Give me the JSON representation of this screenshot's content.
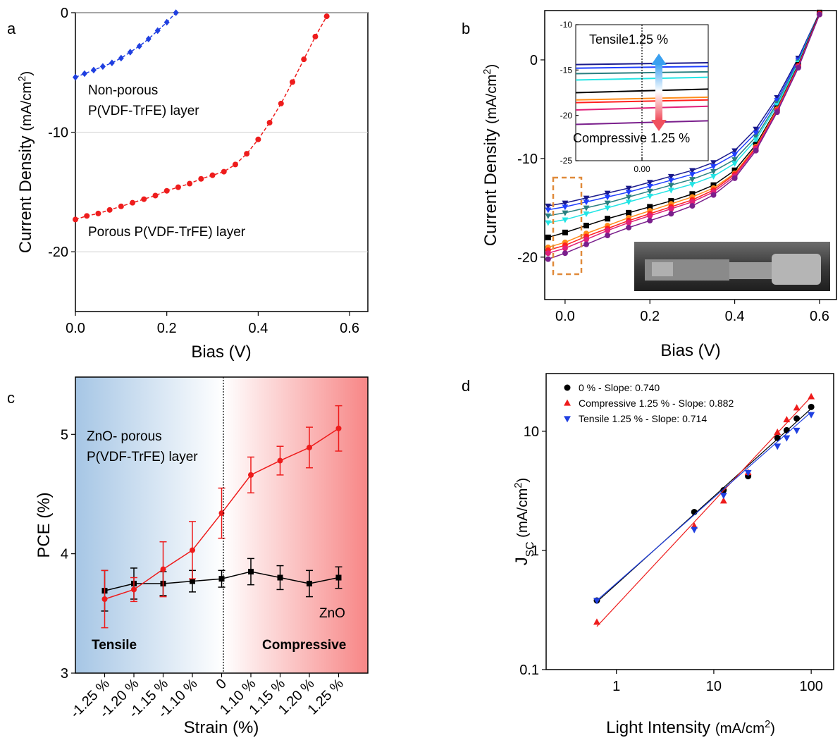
{
  "chart_data": [
    {
      "type": "line",
      "panel": "a",
      "x_label": [
        "Bias (V)"
      ],
      "y_label": [
        "Current Density ",
        "(mA/cm",
        "2",
        ")"
      ],
      "xlim": [
        0,
        0.64
      ],
      "ylim": [
        -25,
        0
      ],
      "xticks": [
        {
          "value": 0,
          "label": "0.0"
        },
        0.2,
        0.4,
        0.6
      ],
      "yticks": [
        -20,
        -10,
        0
      ],
      "grid": true,
      "series": [
        {
          "color": "#1f3fe0",
          "marker": "diamond",
          "dashed": true,
          "x": [
            0,
            0.02,
            0.04,
            0.06,
            0.08,
            0.1,
            0.12,
            0.14,
            0.16,
            0.18,
            0.2,
            0.22
          ],
          "values": [
            -5.4,
            -5.1,
            -4.8,
            -4.5,
            -4.2,
            -3.8,
            -3.3,
            -2.8,
            -2.2,
            -1.5,
            -0.8,
            0
          ]
        },
        {
          "color": "#ee1c1c",
          "marker": "circle",
          "dashed": true,
          "x": [
            0,
            0.025,
            0.05,
            0.075,
            0.1,
            0.125,
            0.15,
            0.175,
            0.2,
            0.225,
            0.25,
            0.275,
            0.3,
            0.325,
            0.35,
            0.375,
            0.4,
            0.425,
            0.45,
            0.475,
            0.5,
            0.525,
            0.55
          ],
          "values": [
            -17.3,
            -17.0,
            -16.8,
            -16.5,
            -16.2,
            -15.9,
            -15.6,
            -15.3,
            -14.9,
            -14.6,
            -14.3,
            -13.9,
            -13.6,
            -13.3,
            -12.7,
            -11.8,
            -10.6,
            -9.2,
            -7.6,
            -5.8,
            -3.9,
            -2.0,
            -0.3
          ]
        }
      ],
      "annotations": [
        {
          "text": "Non-porous"
        },
        {
          "text": "P(VDF-TrFE) layer"
        },
        {
          "text": "Porous P(VDF-TrFE) layer"
        }
      ]
    },
    {
      "type": "line",
      "panel": "b",
      "x_label": [
        "Bias (V)"
      ],
      "y_label": [
        "Current Density ",
        "(mA/cm",
        "2",
        ")"
      ],
      "xlim": [
        -0.048,
        0.64
      ],
      "ylim": [
        -24.3,
        5
      ],
      "xticks": [
        {
          "value": 0,
          "label": "0.0"
        },
        0.2,
        0.4,
        0.6
      ],
      "yticks": [
        -20,
        -10,
        0
      ],
      "grid": false,
      "x": [
        -0.04,
        0,
        0.05,
        0.1,
        0.15,
        0.2,
        0.25,
        0.3,
        0.35,
        0.4,
        0.45,
        0.5,
        0.55,
        0.6
      ],
      "series": [
        {
          "color": "#1a1a8c",
          "marker": "triangle-down",
          "values": [
            -14.8,
            -14.5,
            -14.0,
            -13.5,
            -13.0,
            -12.4,
            -11.8,
            -11.2,
            -10.4,
            -9.2,
            -7.0,
            -3.8,
            0.2,
            4.8
          ]
        },
        {
          "color": "#2040ff",
          "marker": "triangle-down",
          "values": [
            -15.2,
            -14.9,
            -14.4,
            -13.9,
            -13.4,
            -12.8,
            -12.2,
            -11.6,
            -10.8,
            -9.6,
            -7.4,
            -4.1,
            0,
            4.8
          ]
        },
        {
          "color": "#2a7f80",
          "marker": "triangle-down",
          "values": [
            -15.8,
            -15.5,
            -15.0,
            -14.5,
            -13.9,
            -13.3,
            -12.7,
            -12.1,
            -11.3,
            -10.1,
            -7.8,
            -4.4,
            -0.2,
            4.8
          ]
        },
        {
          "color": "#22e5e5",
          "marker": "triangle-down",
          "values": [
            -16.5,
            -16.2,
            -15.6,
            -15.0,
            -14.4,
            -13.8,
            -13.2,
            -12.6,
            -11.8,
            -10.5,
            -8.1,
            -4.6,
            -0.3,
            4.8
          ]
        },
        {
          "color": "#000000",
          "marker": "square",
          "values": [
            -18.0,
            -17.5,
            -16.8,
            -16.1,
            -15.5,
            -14.9,
            -14.3,
            -13.6,
            -12.7,
            -11.2,
            -8.6,
            -4.9,
            -0.5,
            4.8
          ]
        },
        {
          "color": "#ff8c1a",
          "marker": "circle",
          "values": [
            -19.0,
            -18.5,
            -17.6,
            -16.8,
            -16.0,
            -15.3,
            -14.6,
            -13.9,
            -13.0,
            -11.5,
            -8.8,
            -5.0,
            -0.6,
            4.6
          ]
        },
        {
          "color": "#ff2020",
          "marker": "circle",
          "values": [
            -19.3,
            -18.8,
            -17.9,
            -17.1,
            -16.3,
            -15.6,
            -14.9,
            -14.2,
            -13.2,
            -11.6,
            -8.9,
            -5.1,
            -0.6,
            4.7
          ]
        },
        {
          "color": "#e0207a",
          "marker": "circle",
          "values": [
            -19.6,
            -19.1,
            -18.2,
            -17.3,
            -16.5,
            -15.8,
            -15.1,
            -14.4,
            -13.4,
            -11.8,
            -9.0,
            -5.2,
            -0.7,
            4.6
          ]
        },
        {
          "color": "#7a1f8c",
          "marker": "circle",
          "values": [
            -20.2,
            -19.6,
            -18.7,
            -17.8,
            -17.0,
            -16.3,
            -15.6,
            -14.8,
            -13.7,
            -12.0,
            -9.2,
            -5.3,
            -0.8,
            4.6
          ]
        }
      ]
    },
    {
      "type": "line",
      "xlim": [
        -0.02,
        0.02
      ],
      "ylim": [
        -25,
        -10
      ],
      "xticks": [
        {
          "value": 0,
          "label": "0.00"
        }
      ],
      "yticks": [
        -25,
        -20,
        -15,
        -10
      ],
      "x": [
        -0.02,
        0.02
      ],
      "series": [
        {
          "color": "#1a1a8c",
          "values": [
            -14.4,
            -14.2
          ]
        },
        {
          "color": "#2040ff",
          "values": [
            -14.8,
            -14.6
          ]
        },
        {
          "color": "#2a7f80",
          "values": [
            -15.4,
            -15.2
          ]
        },
        {
          "color": "#22e5e5",
          "values": [
            -16.1,
            -15.8
          ]
        },
        {
          "color": "#000000",
          "values": [
            -17.5,
            -17.1
          ]
        },
        {
          "color": "#ff8c1a",
          "values": [
            -18.3,
            -18.0
          ]
        },
        {
          "color": "#ff2020",
          "values": [
            -18.6,
            -18.3
          ]
        },
        {
          "color": "#e0207a",
          "values": [
            -19.4,
            -19.0
          ]
        },
        {
          "color": "#7a1f8c",
          "values": [
            -21.0,
            -20.6
          ]
        }
      ],
      "annotations": [
        {
          "text": "Tensile1.25 %"
        },
        {
          "text": "Compressive 1.25 %"
        }
      ]
    },
    {
      "type": "line",
      "panel": "c",
      "x_label": [
        "Strain (%)"
      ],
      "y_label": [
        "PCE (%)"
      ],
      "categories": [
        "-1.25 %",
        "-1.20 %",
        "-1.15 %",
        "-1.10 %",
        "0",
        "1.10 %",
        "1.15 %",
        "1.20 %",
        "1.25 %"
      ],
      "ylim": [
        3,
        5.48
      ],
      "yticks": [
        3,
        4,
        5
      ],
      "series": [
        {
          "color": "#000000",
          "marker": "square",
          "values": [
            3.69,
            3.75,
            3.75,
            3.77,
            3.79,
            3.85,
            3.8,
            3.75,
            3.8
          ],
          "errors": [
            0.17,
            0.13,
            0.1,
            0.09,
            0.07,
            0.11,
            0.1,
            0.11,
            0.09
          ]
        },
        {
          "color": "#ee1c1c",
          "marker": "circle",
          "values": [
            3.62,
            3.7,
            3.87,
            4.03,
            4.34,
            4.66,
            4.78,
            4.89,
            5.05
          ],
          "errors": [
            0.24,
            0.1,
            0.23,
            0.24,
            0.21,
            0.15,
            0.12,
            0.17,
            0.19
          ]
        }
      ],
      "annotations": [
        {
          "text": "ZnO- porous"
        },
        {
          "text": "P(VDF-TrFE) layer"
        },
        {
          "text": "ZnO"
        },
        {
          "text": "Tensile",
          "color": "#1f6fb5"
        },
        {
          "text": "Compressive",
          "color": "#ee1c1c"
        }
      ]
    },
    {
      "type": "scatter",
      "panel": "d",
      "xscale": "log",
      "yscale": "log",
      "x_label": [
        "Light Intensity ",
        "(mA/cm",
        "2",
        ")"
      ],
      "y_label": [
        "J",
        "SC",
        " (mA/cm",
        "2",
        ")"
      ],
      "xlim": [
        0.19,
        170
      ],
      "ylim": [
        0.1,
        30.5
      ],
      "xticks": [
        1,
        10,
        100
      ],
      "yticks": [
        0.1,
        1,
        10
      ],
      "x": [
        0.63,
        6.3,
        12.6,
        22.5,
        45,
        56,
        71,
        100
      ],
      "fit_x": [
        0.63,
        100
      ],
      "legend": "top-left",
      "series": [
        {
          "name": "0 % - Slope: 0.740",
          "color": "#000000",
          "marker": "circle",
          "values": [
            0.38,
            2.1,
            3.2,
            4.2,
            8.8,
            10.2,
            12.8,
            16.0
          ],
          "fit": [
            0.37,
            15.5
          ]
        },
        {
          "name": "Compressive 1.25 % - Slope: 0.882",
          "color": "#ee1c1c",
          "marker": "triangle-up",
          "values": [
            0.25,
            1.6,
            2.6,
            4.5,
            9.8,
            12.5,
            15.7,
            19.5
          ],
          "fit": [
            0.23,
            19.5
          ]
        },
        {
          "name": "Tensile 1.25 % - Slope: 0.714",
          "color": "#1f3fe0",
          "marker": "triangle-down",
          "values": [
            0.38,
            1.5,
            2.9,
            4.5,
            7.5,
            8.8,
            10.2,
            13.8
          ],
          "fit": [
            0.38,
            14.5
          ]
        }
      ]
    }
  ]
}
